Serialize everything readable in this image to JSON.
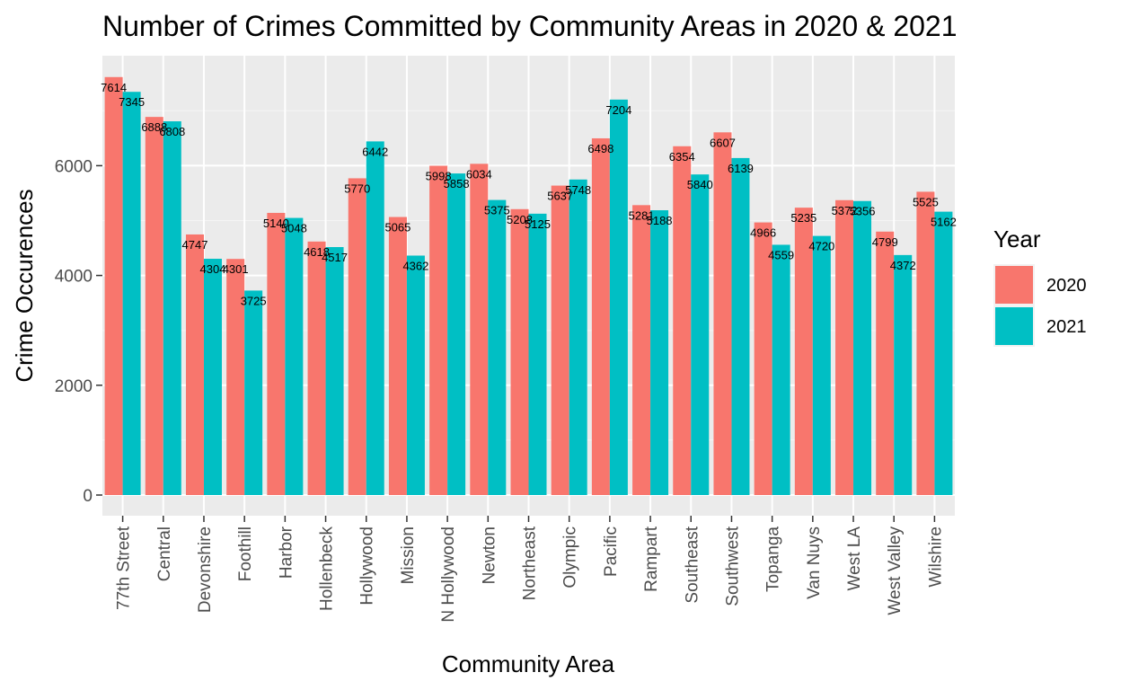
{
  "chart_data": {
    "type": "bar",
    "title": "Number of Crimes Committed by Community Areas in 2020 & 2021",
    "xlabel": "Community Area",
    "ylabel": "Crime Occurences",
    "ylim": [
      0,
      7900
    ],
    "yticks": [
      0,
      2000,
      4000,
      6000
    ],
    "grid": true,
    "legend": {
      "title": "Year",
      "position": "right"
    },
    "categories": [
      "77th Street",
      "Central",
      "Devonshire",
      "Foothill",
      "Harbor",
      "Hollenbeck",
      "Hollywood",
      "Mission",
      "N Hollywood",
      "Newton",
      "Northeast",
      "Olympic",
      "Pacific",
      "Rampart",
      "Southeast",
      "Southwest",
      "Topanga",
      "Van Nuys",
      "West LA",
      "West Valley",
      "Wilshire"
    ],
    "series": [
      {
        "name": "2020",
        "color": "#F8766D",
        "values": [
          7614,
          6888,
          4747,
          4301,
          5140,
          4618,
          5770,
          5065,
          5998,
          6034,
          5208,
          5637,
          6498,
          5281,
          6354,
          6607,
          4966,
          5235,
          5372,
          4799,
          5525
        ]
      },
      {
        "name": "2021",
        "color": "#00BFC4",
        "values": [
          7345,
          6808,
          4304,
          3725,
          5048,
          4517,
          6442,
          4362,
          5858,
          5375,
          5125,
          5748,
          7204,
          5188,
          5840,
          6139,
          4559,
          4720,
          5356,
          4372,
          5162
        ]
      }
    ]
  }
}
